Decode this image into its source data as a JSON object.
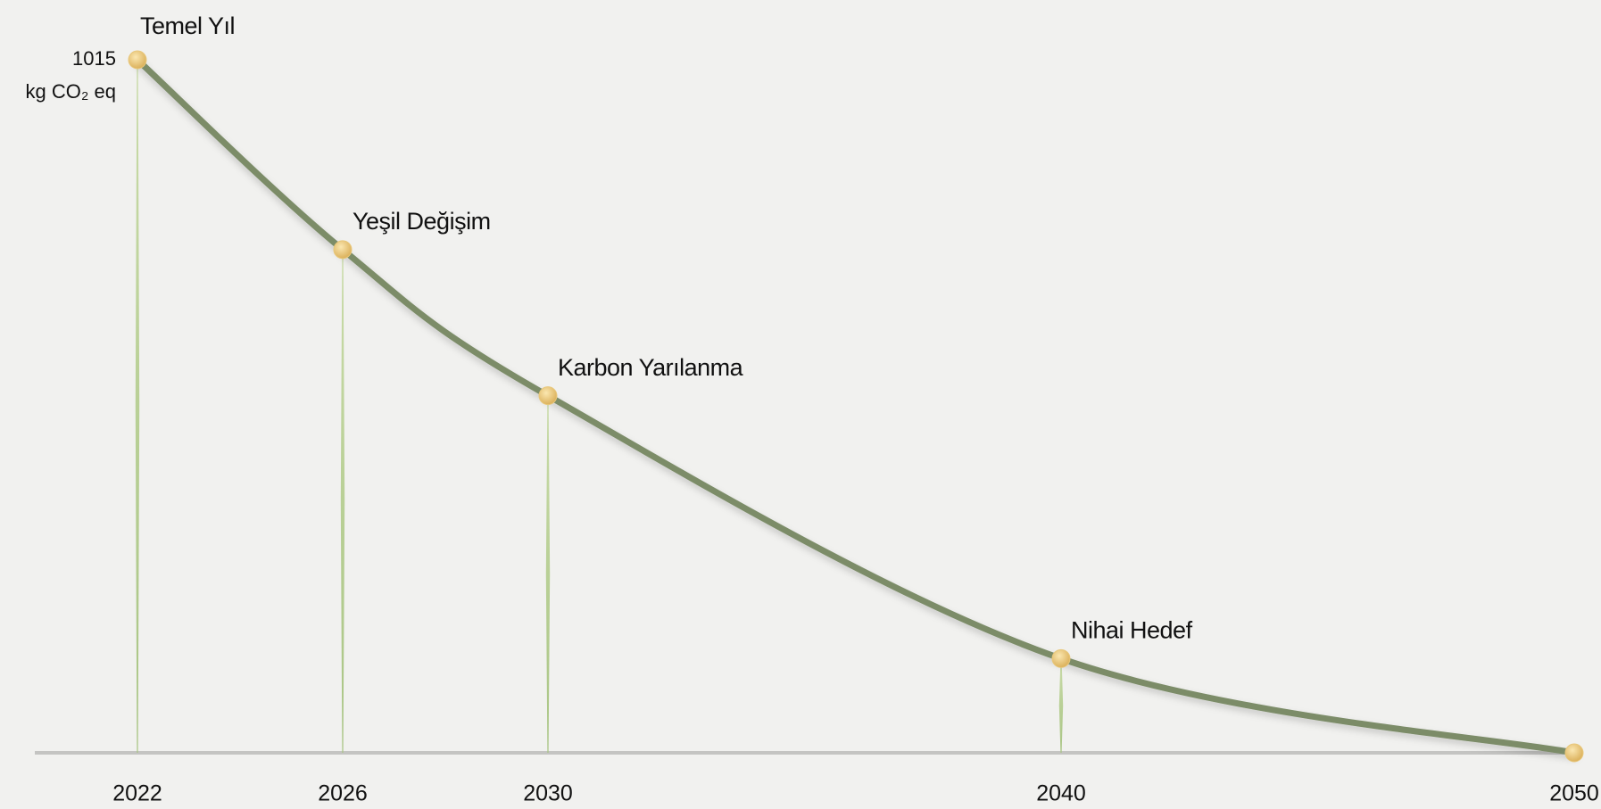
{
  "chart_data": {
    "type": "line",
    "x": [
      2022,
      2026,
      2030,
      2040,
      2050
    ],
    "values": [
      1015,
      737,
      523,
      138,
      0
    ],
    "labels": [
      "Temel Yıl",
      "Yeşil Değişim",
      "Karbon Yarılanma",
      "Nihai Hedef",
      null
    ],
    "value_label": {
      "index": 0,
      "text": "1015",
      "unit": "kg CO₂ eq"
    },
    "color": "#7b8c68",
    "marker_color": "#e8c77a",
    "xlim": [
      2020,
      2050
    ],
    "ylim": [
      0,
      1015
    ],
    "xticks": [
      2022,
      2026,
      2030,
      2040,
      2050
    ],
    "grid": false
  }
}
